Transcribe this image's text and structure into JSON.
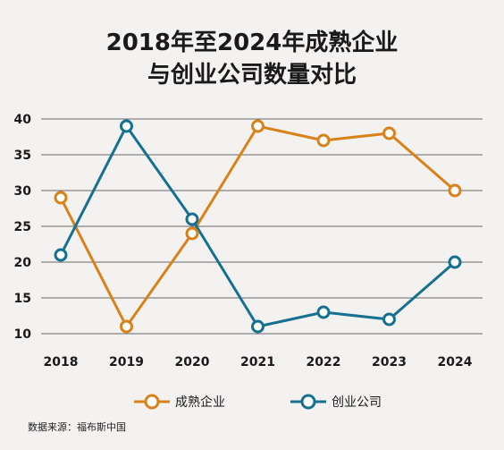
{
  "chart_data": {
    "type": "line",
    "title": "2018年至2024年成熟企业",
    "subtitle": "与创业公司数量对比",
    "x": [
      "2018",
      "2019",
      "2020",
      "2021",
      "2022",
      "2023",
      "2024"
    ],
    "ylim": [
      10,
      40
    ],
    "yticks": [
      10,
      15,
      20,
      25,
      30,
      35,
      40
    ],
    "grid": true,
    "legend_position": "bottom",
    "series": [
      {
        "name": "成熟企业",
        "color": "#d9821a",
        "values": [
          29,
          11,
          24,
          39,
          37,
          38,
          30
        ]
      },
      {
        "name": "创业公司",
        "color": "#16708f",
        "values": [
          21,
          39,
          26,
          11,
          13,
          12,
          20
        ]
      }
    ],
    "source": "数据来源：福布斯中国"
  }
}
